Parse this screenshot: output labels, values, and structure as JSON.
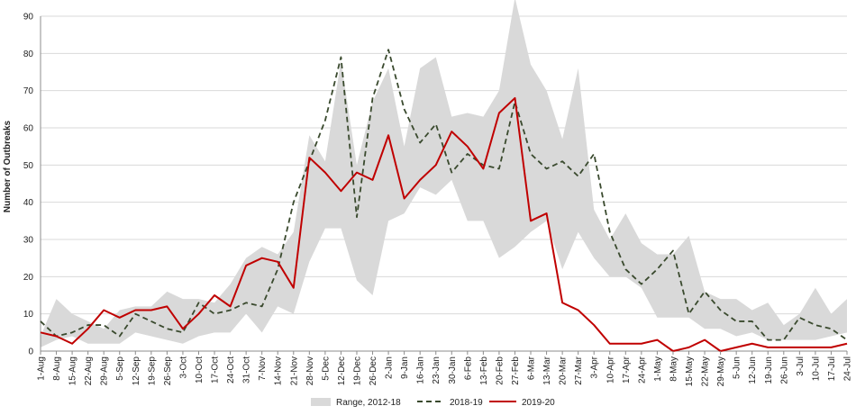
{
  "chart_data": {
    "type": "line",
    "title": "",
    "xlabel": "",
    "ylabel": "Number of Outbreaks",
    "ylim": [
      0,
      90
    ],
    "yticks": [
      0,
      10,
      20,
      30,
      40,
      50,
      60,
      70,
      80,
      90
    ],
    "grid": true,
    "legend_position": "bottom-center",
    "categories": [
      "1-Aug",
      "8-Aug",
      "15-Aug",
      "22-Aug",
      "29-Aug",
      "5-Sep",
      "12-Sep",
      "19-Sep",
      "26-Sep",
      "3-Oct",
      "10-Oct",
      "17-Oct",
      "24-Oct",
      "31-Oct",
      "7-Nov",
      "14-Nov",
      "21-Nov",
      "28-Nov",
      "5-Dec",
      "12-Dec",
      "19-Dec",
      "26-Dec",
      "2-Jan",
      "9-Jan",
      "16-Jan",
      "23-Jan",
      "30-Jan",
      "6-Feb",
      "13-Feb",
      "20-Feb",
      "27-Feb",
      "6-Mar",
      "13-Mar",
      "20-Mar",
      "27-Mar",
      "3-Apr",
      "10-Apr",
      "17-Apr",
      "24-Apr",
      "1-May",
      "8-May",
      "15-May",
      "22-May",
      "29-May",
      "5-Jun",
      "12-Jun",
      "19-Jun",
      "26-Jun",
      "3-Jul",
      "10-Jul",
      "17-Jul",
      "24-Jul"
    ],
    "range": {
      "name": "Range, 2012-18",
      "color": "#d9d9d9",
      "min": [
        1,
        3,
        4,
        2,
        2,
        2,
        5,
        4,
        3,
        2,
        4,
        5,
        5,
        10,
        5,
        12,
        10,
        24,
        33,
        33,
        19,
        15,
        35,
        37,
        44,
        42,
        46,
        35,
        35,
        25,
        28,
        32,
        35,
        22,
        32,
        25,
        20,
        20,
        17,
        9,
        9,
        9,
        6,
        6,
        4,
        5,
        3,
        3,
        3,
        3,
        4,
        5
      ],
      "max": [
        4,
        14,
        10,
        8,
        6,
        11,
        12,
        12,
        16,
        14,
        14,
        13,
        18,
        25,
        28,
        26,
        32,
        58,
        51,
        78,
        50,
        67,
        76,
        55,
        76,
        79,
        63,
        64,
        63,
        70,
        95,
        77,
        70,
        57,
        76,
        38,
        30,
        37,
        29,
        26,
        26,
        31,
        16,
        14,
        14,
        11,
        13,
        7,
        10,
        17,
        10,
        14
      ]
    },
    "series": [
      {
        "name": "2018-19",
        "color": "#3a4a2e",
        "dash": "6,4",
        "values": [
          8,
          4,
          5,
          7,
          7,
          4,
          10,
          8,
          6,
          5,
          13,
          10,
          11,
          13,
          12,
          22,
          40,
          51,
          62,
          79,
          36,
          68,
          81,
          65,
          56,
          61,
          48,
          53,
          50,
          49,
          67,
          53,
          49,
          51,
          47,
          53,
          32,
          22,
          18,
          22,
          27,
          10,
          16,
          11,
          8,
          8,
          3,
          3,
          9,
          7,
          6,
          3
        ]
      },
      {
        "name": "2019-20",
        "color": "#c00000",
        "dash": "",
        "values": [
          5,
          4,
          2,
          6,
          11,
          9,
          11,
          11,
          12,
          6,
          10,
          15,
          12,
          23,
          25,
          24,
          17,
          52,
          48,
          43,
          48,
          46,
          58,
          41,
          46,
          50,
          59,
          55,
          49,
          64,
          68,
          35,
          37,
          13,
          11,
          7,
          2,
          2,
          2,
          3,
          0,
          1,
          3,
          0,
          1,
          2,
          1,
          1,
          1,
          1,
          1,
          2
        ]
      }
    ]
  }
}
